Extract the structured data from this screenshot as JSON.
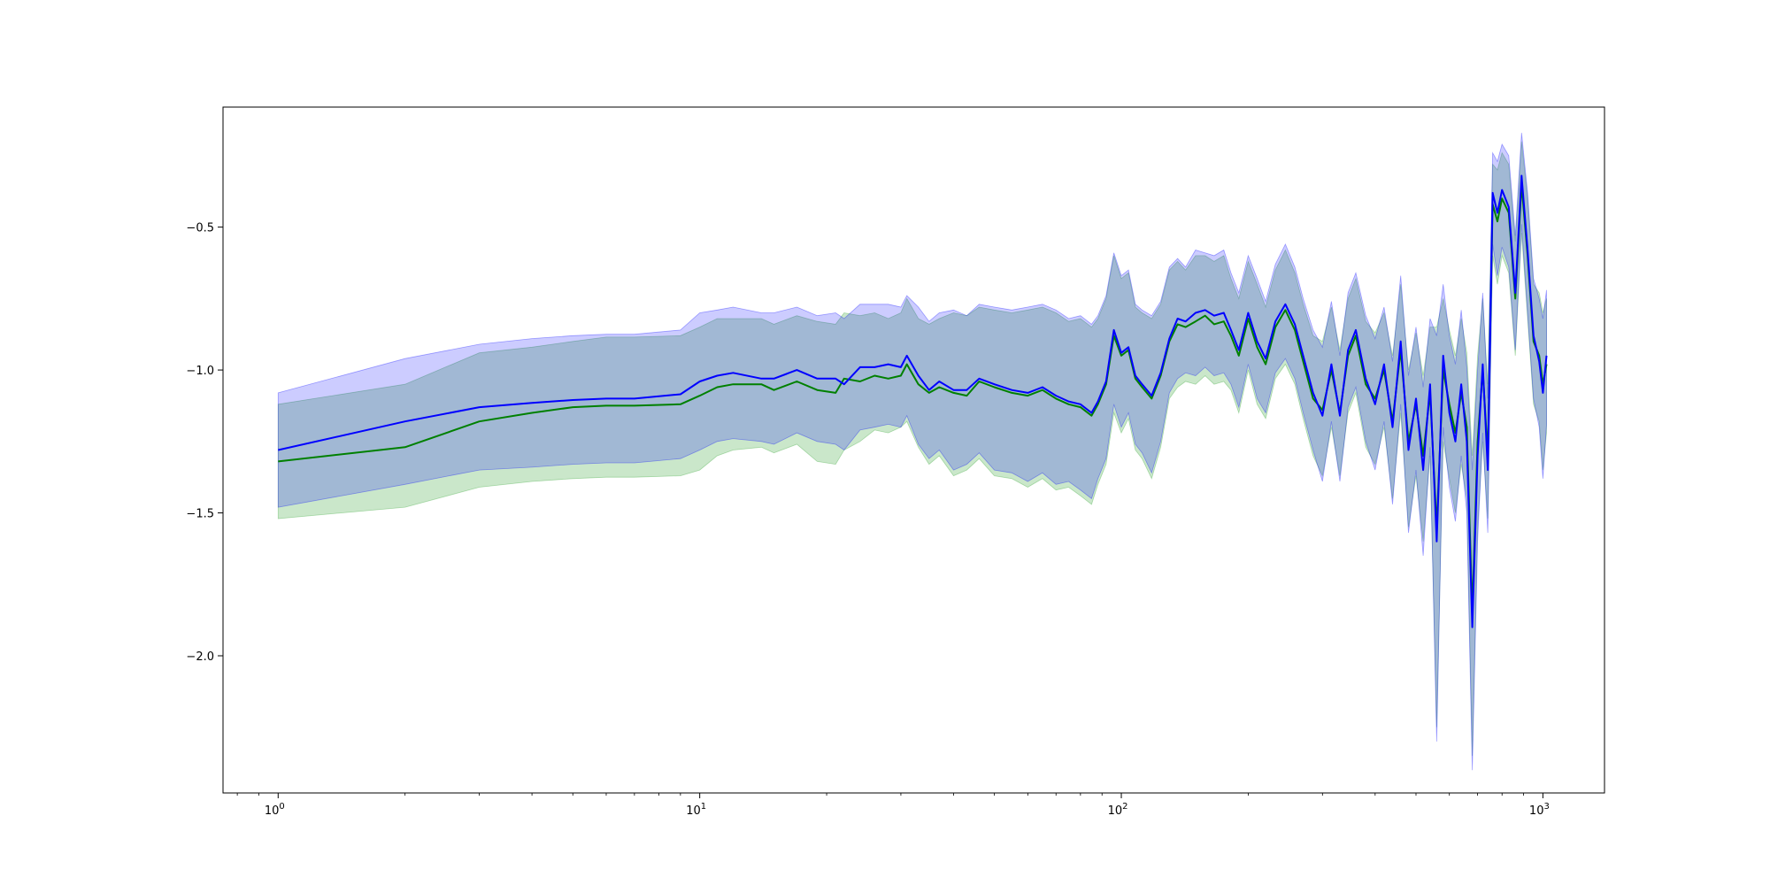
{
  "chart_data": {
    "type": "line",
    "title": "",
    "xlabel": "",
    "ylabel": "",
    "xscale": "log",
    "xlim": [
      0.74,
      1400
    ],
    "ylim": [
      -2.48,
      -0.08
    ],
    "grid": false,
    "legend": "none",
    "x_ticks": [
      {
        "value": 1,
        "base": "10",
        "exp": "0"
      },
      {
        "value": 10,
        "base": "10",
        "exp": "1"
      },
      {
        "value": 100,
        "base": "10",
        "exp": "2"
      },
      {
        "value": 1000,
        "base": "10",
        "exp": "3"
      }
    ],
    "y_ticks": [
      {
        "value": -0.5,
        "label": "−0.5"
      },
      {
        "value": -1.0,
        "label": "−1.0"
      },
      {
        "value": -1.5,
        "label": "−1.5"
      },
      {
        "value": -2.0,
        "label": "−2.0"
      }
    ],
    "series": [
      {
        "color": "#008000",
        "band_color": "#2ca02c",
        "band_opacity": 0.25,
        "x": [
          1,
          2,
          3,
          4,
          5,
          6,
          7,
          9,
          10,
          11,
          12,
          14,
          15,
          17,
          19,
          21,
          22,
          24,
          26,
          28,
          30,
          31,
          33,
          35,
          37,
          40,
          43,
          46,
          50,
          55,
          60,
          65,
          70,
          75,
          80,
          85,
          88,
          92,
          96,
          100,
          104,
          108,
          112,
          118,
          124,
          130,
          136,
          142,
          150,
          158,
          166,
          175,
          182,
          190,
          200,
          210,
          220,
          232,
          245,
          258,
          270,
          285,
          300,
          315,
          330,
          345,
          360,
          380,
          400,
          420,
          440,
          460,
          480,
          500,
          520,
          540,
          560,
          580,
          600,
          620,
          640,
          660,
          680,
          700,
          720,
          740,
          760,
          780,
          800,
          830,
          860,
          890,
          920,
          950,
          980,
          1000,
          1020
        ],
        "y": [
          -1.32,
          -1.27,
          -1.18,
          -1.15,
          -1.13,
          -1.125,
          -1.125,
          -1.12,
          -1.09,
          -1.06,
          -1.05,
          -1.05,
          -1.07,
          -1.04,
          -1.07,
          -1.08,
          -1.03,
          -1.04,
          -1.02,
          -1.03,
          -1.02,
          -0.98,
          -1.05,
          -1.08,
          -1.06,
          -1.08,
          -1.09,
          -1.04,
          -1.06,
          -1.08,
          -1.09,
          -1.07,
          -1.1,
          -1.12,
          -1.13,
          -1.16,
          -1.12,
          -1.05,
          -0.88,
          -0.95,
          -0.93,
          -1.03,
          -1.06,
          -1.1,
          -1.02,
          -0.9,
          -0.84,
          -0.85,
          -0.83,
          -0.81,
          -0.84,
          -0.83,
          -0.88,
          -0.95,
          -0.82,
          -0.92,
          -0.98,
          -0.85,
          -0.79,
          -0.86,
          -0.97,
          -1.1,
          -1.14,
          -1.0,
          -1.15,
          -0.95,
          -0.88,
          -1.05,
          -1.1,
          -1.0,
          -1.18,
          -0.93,
          -1.25,
          -1.12,
          -1.3,
          -1.08,
          -1.55,
          -1.0,
          -1.12,
          -1.22,
          -1.08,
          -1.2,
          -1.85,
          -1.25,
          -1.0,
          -1.3,
          -0.42,
          -0.48,
          -0.4,
          -0.45,
          -0.75,
          -0.35,
          -0.6,
          -0.9,
          -0.95,
          -1.05,
          -0.98
        ],
        "lower": [
          -1.52,
          -1.48,
          -1.41,
          -1.39,
          -1.38,
          -1.375,
          -1.375,
          -1.37,
          -1.35,
          -1.3,
          -1.28,
          -1.27,
          -1.29,
          -1.26,
          -1.32,
          -1.33,
          -1.28,
          -1.25,
          -1.21,
          -1.22,
          -1.2,
          -1.18,
          -1.27,
          -1.33,
          -1.3,
          -1.37,
          -1.35,
          -1.31,
          -1.37,
          -1.38,
          -1.41,
          -1.38,
          -1.42,
          -1.41,
          -1.44,
          -1.47,
          -1.4,
          -1.33,
          -1.15,
          -1.22,
          -1.17,
          -1.28,
          -1.31,
          -1.38,
          -1.27,
          -1.1,
          -1.06,
          -1.04,
          -1.05,
          -1.02,
          -1.05,
          -1.04,
          -1.07,
          -1.15,
          -1.0,
          -1.12,
          -1.17,
          -1.03,
          -0.98,
          -1.05,
          -1.17,
          -1.3,
          -1.37,
          -1.2,
          -1.37,
          -1.15,
          -1.08,
          -1.27,
          -1.33,
          -1.2,
          -1.45,
          -1.15,
          -1.55,
          -1.37,
          -1.6,
          -1.3,
          -2.25,
          -1.25,
          -1.38,
          -1.5,
          -1.33,
          -1.45,
          -2.35,
          -1.55,
          -1.25,
          -1.52,
          -0.6,
          -0.7,
          -0.6,
          -0.66,
          -0.95,
          -0.52,
          -0.82,
          -1.12,
          -1.18,
          -1.35,
          -1.22
        ],
        "upper": [
          -1.12,
          -1.05,
          -0.94,
          -0.92,
          -0.9,
          -0.885,
          -0.885,
          -0.88,
          -0.85,
          -0.82,
          -0.82,
          -0.82,
          -0.84,
          -0.81,
          -0.83,
          -0.84,
          -0.8,
          -0.81,
          -0.8,
          -0.82,
          -0.8,
          -0.75,
          -0.82,
          -0.84,
          -0.82,
          -0.8,
          -0.81,
          -0.78,
          -0.79,
          -0.8,
          -0.79,
          -0.78,
          -0.8,
          -0.83,
          -0.82,
          -0.85,
          -0.82,
          -0.75,
          -0.6,
          -0.68,
          -0.66,
          -0.78,
          -0.8,
          -0.82,
          -0.77,
          -0.65,
          -0.62,
          -0.65,
          -0.6,
          -0.6,
          -0.62,
          -0.6,
          -0.68,
          -0.75,
          -0.62,
          -0.7,
          -0.78,
          -0.65,
          -0.58,
          -0.66,
          -0.77,
          -0.88,
          -0.9,
          -0.78,
          -0.93,
          -0.75,
          -0.68,
          -0.83,
          -0.87,
          -0.8,
          -0.95,
          -0.7,
          -1.0,
          -0.87,
          -1.02,
          -0.85,
          -0.85,
          -0.75,
          -0.86,
          -0.95,
          -0.82,
          -0.94,
          -1.3,
          -0.95,
          -0.75,
          -1.05,
          -0.28,
          -0.3,
          -0.24,
          -0.28,
          -0.55,
          -0.2,
          -0.4,
          -0.7,
          -0.73,
          -0.8,
          -0.75
        ]
      },
      {
        "color": "#0000ff",
        "band_color": "#0000ff",
        "band_opacity": 0.2,
        "x": [
          1,
          2,
          3,
          4,
          5,
          6,
          7,
          9,
          10,
          11,
          12,
          14,
          15,
          17,
          19,
          21,
          22,
          24,
          26,
          28,
          30,
          31,
          33,
          35,
          37,
          40,
          43,
          46,
          50,
          55,
          60,
          65,
          70,
          75,
          80,
          85,
          88,
          92,
          96,
          100,
          104,
          108,
          112,
          118,
          124,
          130,
          136,
          142,
          150,
          158,
          166,
          175,
          182,
          190,
          200,
          210,
          220,
          232,
          245,
          258,
          270,
          285,
          300,
          315,
          330,
          345,
          360,
          380,
          400,
          420,
          440,
          460,
          480,
          500,
          520,
          540,
          560,
          580,
          600,
          620,
          640,
          660,
          680,
          700,
          720,
          740,
          760,
          780,
          800,
          830,
          860,
          890,
          920,
          950,
          980,
          1000,
          1020
        ],
        "y": [
          -1.28,
          -1.18,
          -1.13,
          -1.115,
          -1.105,
          -1.1,
          -1.1,
          -1.085,
          -1.04,
          -1.02,
          -1.01,
          -1.03,
          -1.03,
          -1.0,
          -1.03,
          -1.03,
          -1.05,
          -0.99,
          -0.99,
          -0.98,
          -0.99,
          -0.95,
          -1.02,
          -1.07,
          -1.04,
          -1.07,
          -1.07,
          -1.03,
          -1.05,
          -1.07,
          -1.08,
          -1.06,
          -1.09,
          -1.11,
          -1.12,
          -1.15,
          -1.11,
          -1.04,
          -0.86,
          -0.94,
          -0.92,
          -1.02,
          -1.05,
          -1.09,
          -1.01,
          -0.89,
          -0.82,
          -0.83,
          -0.8,
          -0.79,
          -0.81,
          -0.8,
          -0.86,
          -0.93,
          -0.8,
          -0.9,
          -0.96,
          -0.83,
          -0.77,
          -0.84,
          -0.95,
          -1.08,
          -1.16,
          -0.98,
          -1.16,
          -0.93,
          -0.86,
          -1.03,
          -1.12,
          -0.98,
          -1.2,
          -0.9,
          -1.28,
          -1.1,
          -1.35,
          -1.05,
          -1.6,
          -0.95,
          -1.15,
          -1.25,
          -1.05,
          -1.25,
          -1.9,
          -1.3,
          -0.98,
          -1.35,
          -0.38,
          -0.45,
          -0.37,
          -0.43,
          -0.73,
          -0.32,
          -0.58,
          -0.88,
          -0.97,
          -1.08,
          -0.95
        ],
        "lower": [
          -1.48,
          -1.4,
          -1.35,
          -1.34,
          -1.33,
          -1.325,
          -1.325,
          -1.31,
          -1.28,
          -1.25,
          -1.24,
          -1.25,
          -1.26,
          -1.22,
          -1.25,
          -1.26,
          -1.28,
          -1.21,
          -1.2,
          -1.19,
          -1.2,
          -1.16,
          -1.26,
          -1.31,
          -1.28,
          -1.35,
          -1.33,
          -1.29,
          -1.35,
          -1.36,
          -1.39,
          -1.36,
          -1.4,
          -1.39,
          -1.42,
          -1.45,
          -1.38,
          -1.31,
          -1.12,
          -1.2,
          -1.15,
          -1.26,
          -1.29,
          -1.36,
          -1.25,
          -1.08,
          -1.03,
          -1.01,
          -1.02,
          -0.99,
          -1.02,
          -1.01,
          -1.05,
          -1.13,
          -0.98,
          -1.1,
          -1.15,
          -1.01,
          -0.96,
          -1.03,
          -1.15,
          -1.28,
          -1.39,
          -1.18,
          -1.39,
          -1.13,
          -1.06,
          -1.25,
          -1.35,
          -1.18,
          -1.47,
          -1.12,
          -1.57,
          -1.35,
          -1.65,
          -1.27,
          -2.3,
          -1.2,
          -1.41,
          -1.53,
          -1.3,
          -1.5,
          -2.4,
          -1.6,
          -1.22,
          -1.57,
          -0.56,
          -0.67,
          -0.57,
          -0.64,
          -0.93,
          -0.49,
          -0.8,
          -1.1,
          -1.2,
          -1.38,
          -1.19
        ],
        "upper": [
          -1.08,
          -0.96,
          -0.91,
          -0.89,
          -0.88,
          -0.875,
          -0.875,
          -0.86,
          -0.8,
          -0.79,
          -0.78,
          -0.8,
          -0.8,
          -0.78,
          -0.81,
          -0.8,
          -0.82,
          -0.77,
          -0.77,
          -0.77,
          -0.78,
          -0.74,
          -0.78,
          -0.83,
          -0.8,
          -0.79,
          -0.81,
          -0.77,
          -0.78,
          -0.79,
          -0.78,
          -0.77,
          -0.79,
          -0.82,
          -0.81,
          -0.84,
          -0.81,
          -0.74,
          -0.59,
          -0.67,
          -0.65,
          -0.77,
          -0.79,
          -0.81,
          -0.76,
          -0.64,
          -0.61,
          -0.64,
          -0.58,
          -0.59,
          -0.6,
          -0.58,
          -0.66,
          -0.73,
          -0.6,
          -0.68,
          -0.76,
          -0.63,
          -0.56,
          -0.64,
          -0.75,
          -0.86,
          -0.92,
          -0.76,
          -0.95,
          -0.73,
          -0.66,
          -0.81,
          -0.89,
          -0.78,
          -0.97,
          -0.67,
          -1.02,
          -0.85,
          -1.06,
          -0.82,
          -0.88,
          -0.7,
          -0.88,
          -0.98,
          -0.79,
          -0.99,
          -1.35,
          -1.0,
          -0.73,
          -1.1,
          -0.24,
          -0.27,
          -0.21,
          -0.25,
          -0.53,
          -0.17,
          -0.38,
          -0.68,
          -0.75,
          -0.82,
          -0.72
        ]
      }
    ]
  }
}
